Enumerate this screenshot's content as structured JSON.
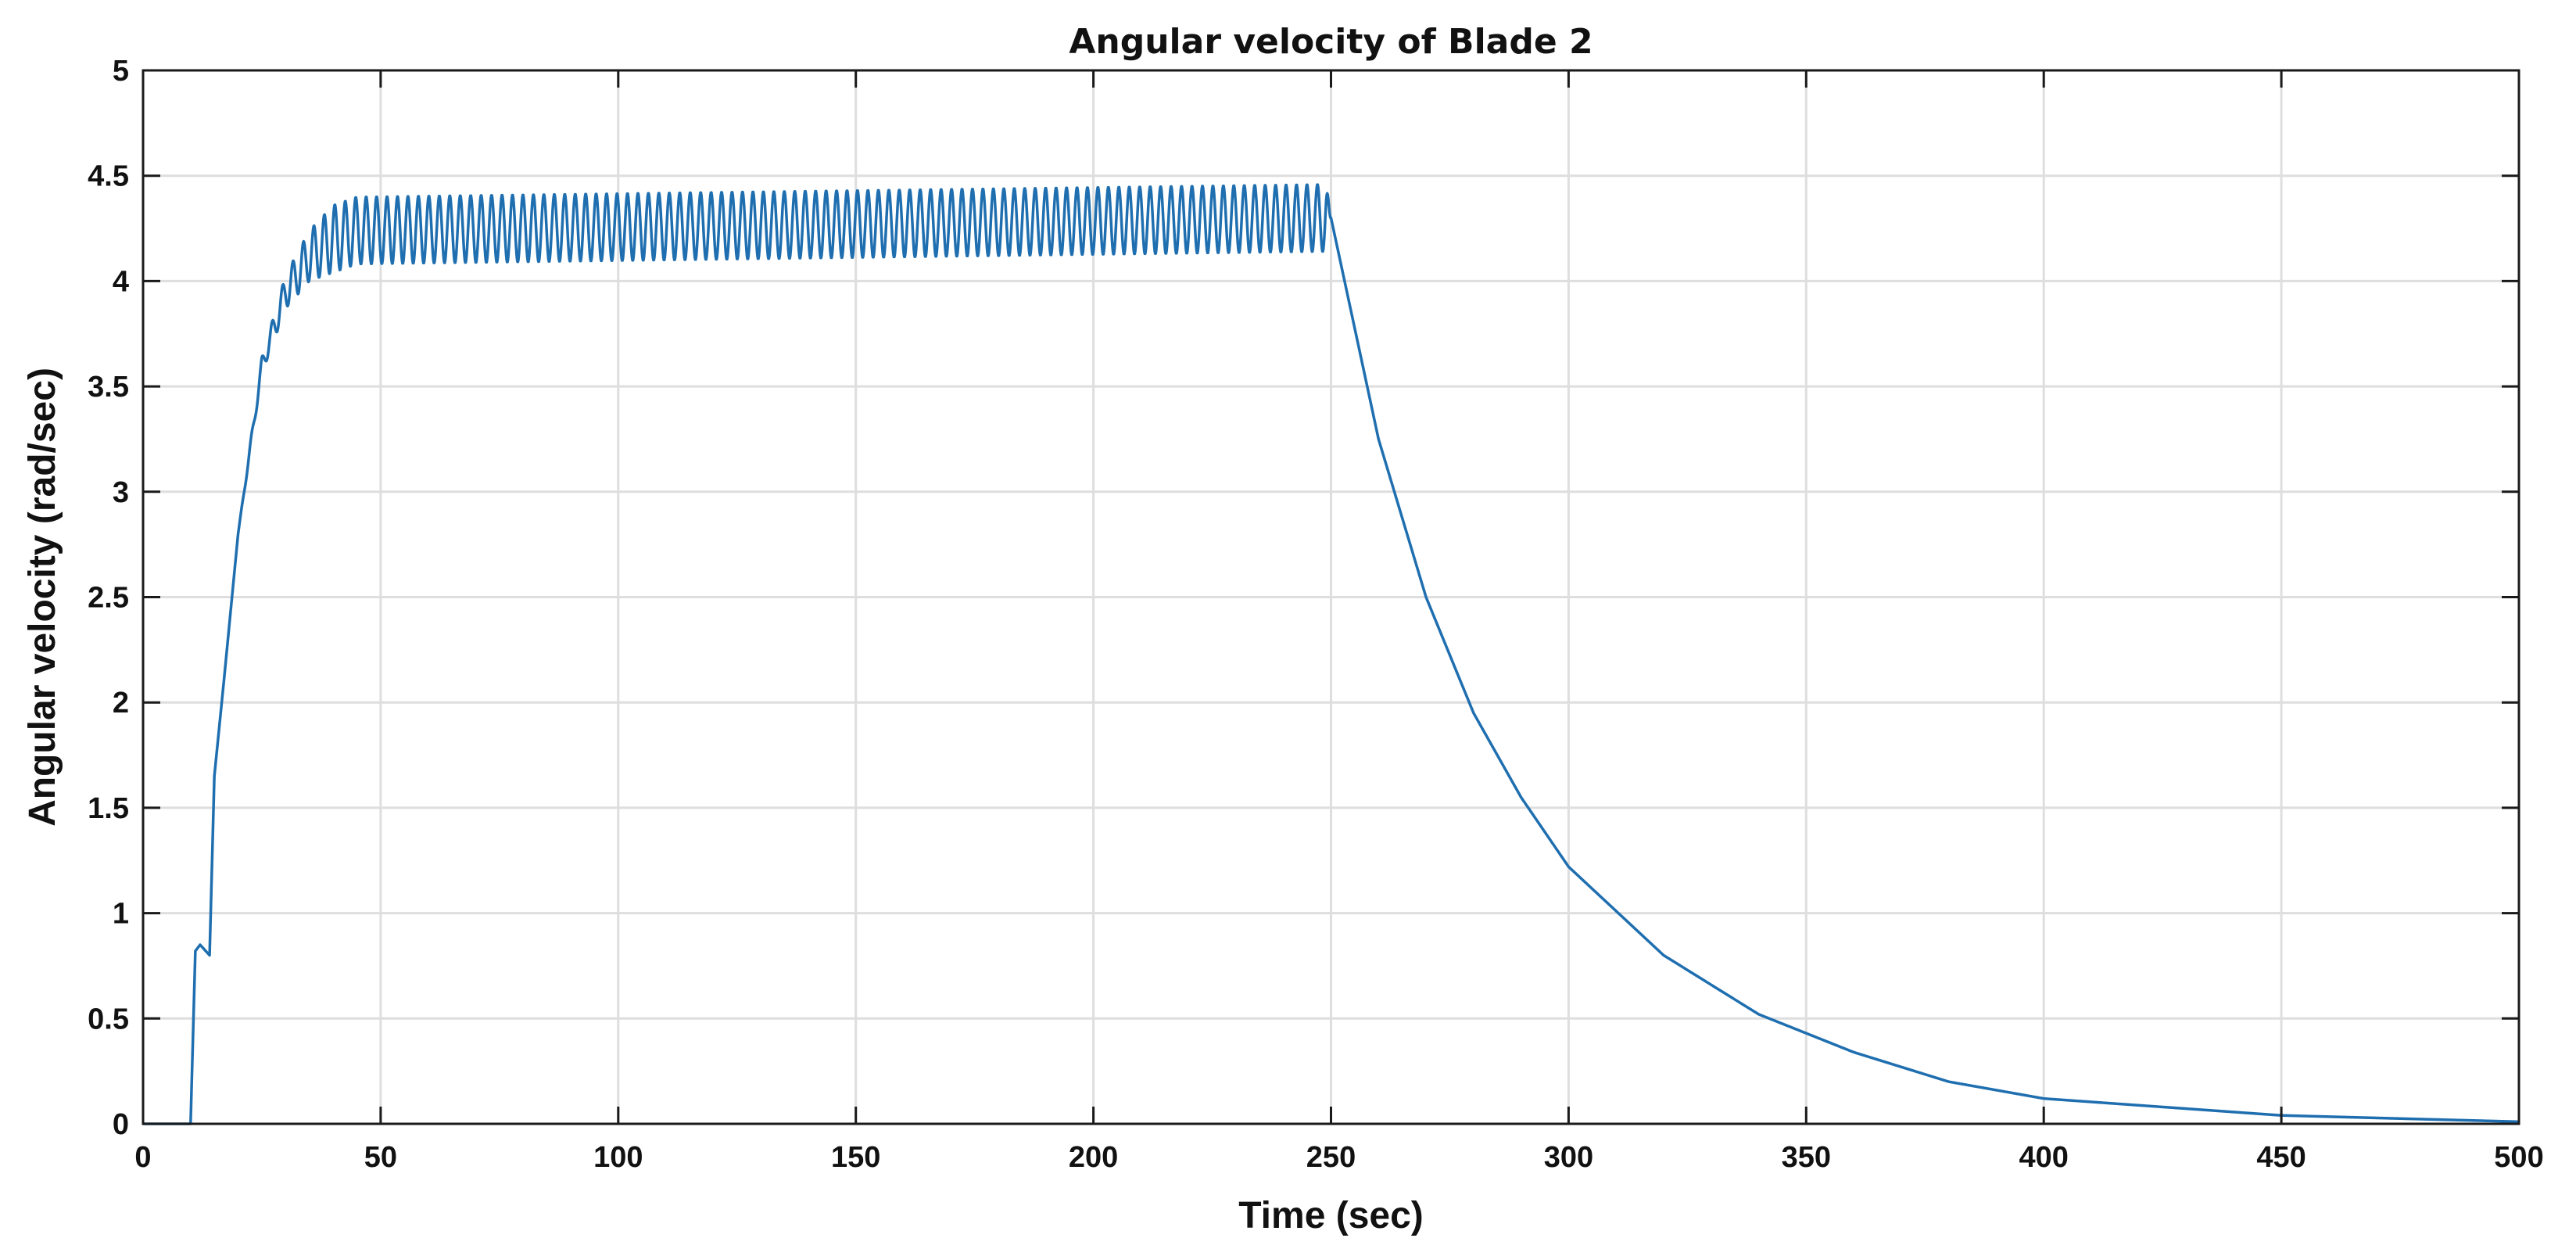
{
  "chart_data": {
    "type": "line",
    "title": "Angular velocity of Blade 2",
    "xlabel": "Time (sec)",
    "ylabel": "Angular velocity (rad/sec)",
    "xlim": [
      0,
      500
    ],
    "ylim": [
      0,
      5
    ],
    "xticks": [
      0,
      50,
      100,
      150,
      200,
      250,
      300,
      350,
      400,
      450,
      500
    ],
    "xtick_labels": [
      "0",
      "50",
      "100",
      "150",
      "200",
      "250",
      "300",
      "350",
      "400",
      "450",
      "500"
    ],
    "yticks": [
      0,
      0.5,
      1,
      1.5,
      2,
      2.5,
      3,
      3.5,
      4,
      4.5,
      5
    ],
    "ytick_labels": [
      "0",
      "0.5",
      "1",
      "1.5",
      "2",
      "2.5",
      "3",
      "3.5",
      "4",
      "4.5",
      "5"
    ],
    "grid": true,
    "line_color": "#1f6fb0",
    "series": [
      {
        "name": "Blade 2",
        "description_points": {
          "x": [
            0,
            10,
            11,
            12,
            14,
            15,
            17,
            20,
            25,
            30,
            35,
            40,
            45,
            250,
            260,
            270,
            280,
            290,
            300,
            320,
            340,
            360,
            380,
            400,
            450,
            500
          ],
          "y": [
            0,
            0,
            0.82,
            0.85,
            0.8,
            1.65,
            2.1,
            2.8,
            3.6,
            3.95,
            4.12,
            4.2,
            4.24,
            4.3,
            3.25,
            2.5,
            1.95,
            1.55,
            1.22,
            0.8,
            0.52,
            0.34,
            0.2,
            0.12,
            0.04,
            0.01
          ]
        },
        "oscillation": {
          "start": 20,
          "end": 250,
          "center": 4.25,
          "amplitude": 0.16,
          "period": 2.2
        }
      }
    ]
  }
}
